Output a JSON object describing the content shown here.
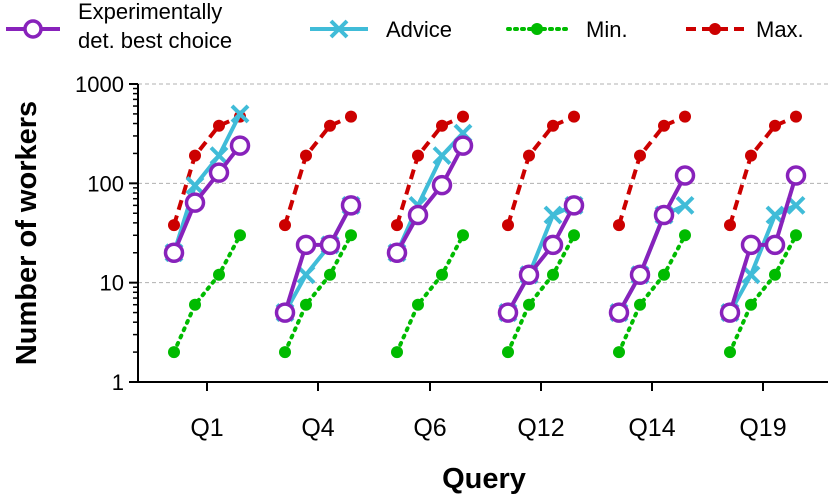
{
  "chart_data": {
    "type": "line",
    "xlabel": "Query",
    "ylabel": "Number of workers",
    "yscale": "log",
    "ylim": [
      1,
      1000
    ],
    "yticks": [
      "1",
      "10",
      "100",
      "1000"
    ],
    "grid": "horizontal dashed",
    "legend": "top",
    "categories": [
      "Q1",
      "Q4",
      "Q6",
      "Q12",
      "Q14",
      "Q19"
    ],
    "points_per_group": 4,
    "series": [
      {
        "name": "Max.",
        "color": "#cc0000",
        "style": "dashed",
        "marker": "filled-circle",
        "values": [
          [
            38,
            190,
            380,
            470
          ],
          [
            38,
            190,
            380,
            470
          ],
          [
            38,
            190,
            380,
            470
          ],
          [
            38,
            190,
            380,
            470
          ],
          [
            38,
            190,
            380,
            470
          ],
          [
            38,
            190,
            380,
            470
          ]
        ]
      },
      {
        "name": "Min.",
        "color": "#00bb00",
        "style": "dotted",
        "marker": "filled-circle",
        "values": [
          [
            2,
            6,
            12,
            30
          ],
          [
            2,
            6,
            12,
            30
          ],
          [
            2,
            6,
            12,
            30
          ],
          [
            2,
            6,
            12,
            30
          ],
          [
            2,
            6,
            12,
            30
          ],
          [
            2,
            6,
            12,
            30
          ]
        ]
      },
      {
        "name": "Advice",
        "color": "#40bcd8",
        "style": "solid",
        "marker": "x",
        "values": [
          [
            20,
            95,
            190,
            500
          ],
          [
            5,
            12,
            24,
            60
          ],
          [
            20,
            60,
            190,
            320
          ],
          [
            5,
            12,
            48,
            60
          ],
          [
            5,
            12,
            48,
            60
          ],
          [
            5,
            12,
            48,
            60
          ]
        ]
      },
      {
        "name": "Experimentally det. best choice",
        "legend_lines": [
          "Experimentally",
          "det. best choice"
        ],
        "color": "#8822bb",
        "style": "solid",
        "marker": "open-circle",
        "values": [
          [
            20,
            64,
            128,
            240
          ],
          [
            5,
            24,
            24,
            60
          ],
          [
            20,
            48,
            96,
            240
          ],
          [
            5,
            12,
            24,
            60
          ],
          [
            5,
            12,
            48,
            120
          ],
          [
            5,
            24,
            24,
            120
          ]
        ]
      }
    ]
  }
}
